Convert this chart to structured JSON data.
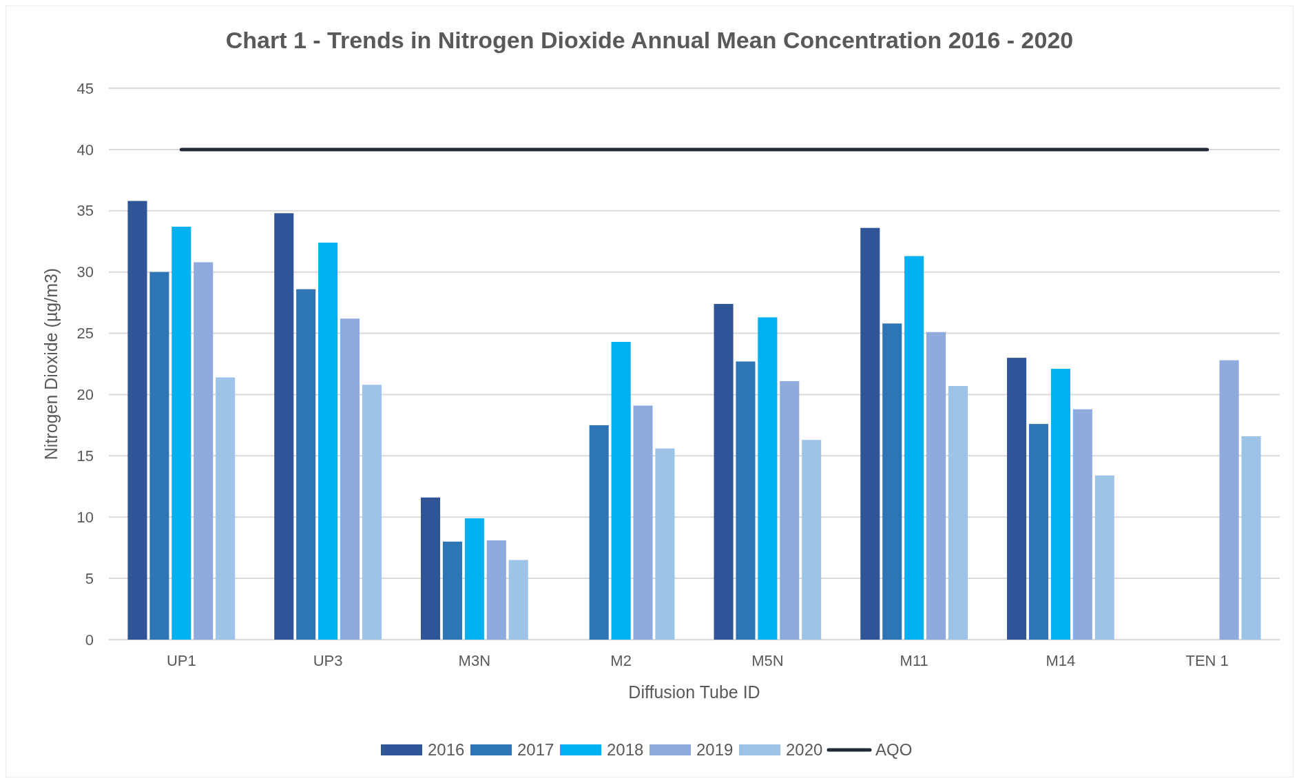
{
  "chart_data": {
    "type": "bar",
    "title": "Chart 1 - Trends in Nitrogen Dioxide Annual Mean Concentration 2016 - 2020",
    "xlabel": "Diffusion Tube ID",
    "ylabel": "Nitrogen Dioxide (µg/m3)",
    "categories": [
      "UP1",
      "UP3",
      "M3N",
      "M2",
      "M5N",
      "M11",
      "M14",
      "TEN 1"
    ],
    "series": [
      {
        "name": "2016",
        "color": "#2f5597",
        "values": [
          35.8,
          34.8,
          11.6,
          null,
          27.4,
          33.6,
          23.0,
          null
        ]
      },
      {
        "name": "2017",
        "color": "#2e75b6",
        "values": [
          30.0,
          28.6,
          8.0,
          17.5,
          22.7,
          25.8,
          17.6,
          null
        ]
      },
      {
        "name": "2018",
        "color": "#00b0f0",
        "values": [
          33.7,
          32.4,
          9.9,
          24.3,
          26.3,
          31.3,
          22.1,
          null
        ]
      },
      {
        "name": "2019",
        "color": "#8faadc",
        "values": [
          30.8,
          26.2,
          8.1,
          19.1,
          21.1,
          25.1,
          18.8,
          22.8
        ]
      },
      {
        "name": "2020",
        "color": "#9dc3e6",
        "values": [
          21.4,
          20.8,
          6.5,
          15.6,
          16.3,
          20.7,
          13.4,
          16.6
        ]
      },
      {
        "name": "AQO",
        "type": "line",
        "color": "#222a35",
        "values": [
          40,
          40,
          40,
          40,
          40,
          40,
          40,
          40
        ]
      }
    ],
    "ylim": [
      0,
      45
    ],
    "yticks": [
      0,
      5,
      10,
      15,
      20,
      25,
      30,
      35,
      40,
      45
    ],
    "grid": "y",
    "legend": "bottom",
    "marker": "none"
  }
}
